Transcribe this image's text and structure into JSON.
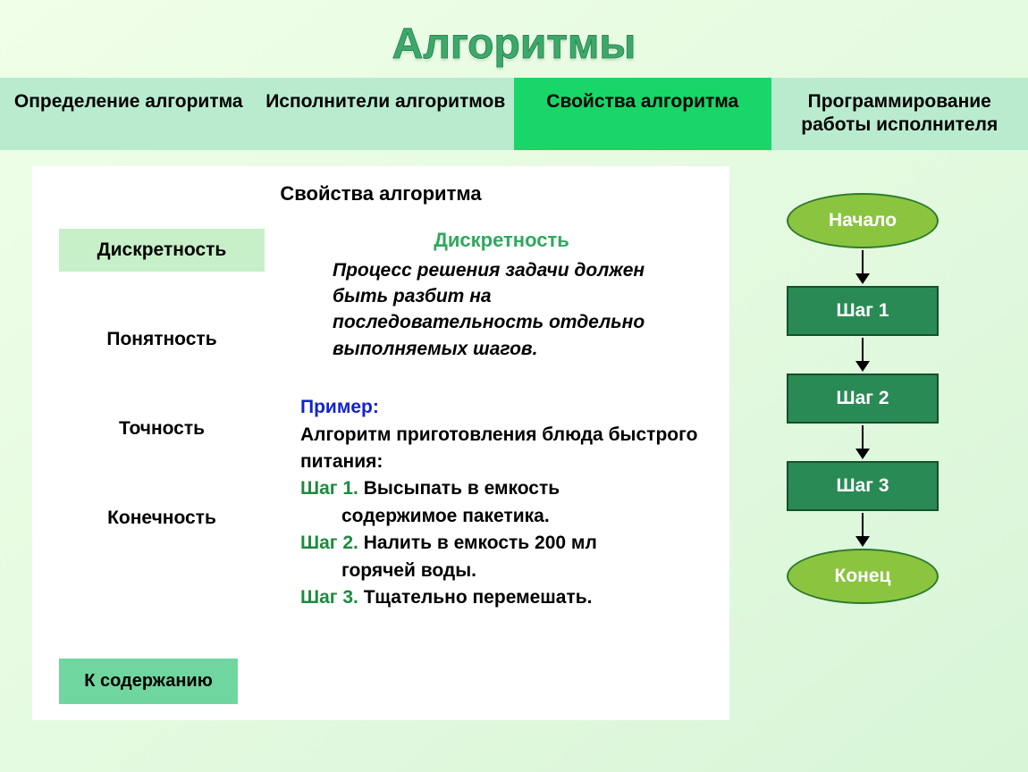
{
  "title": "Алгоритмы",
  "tabs": [
    {
      "label": "Определение алгоритма",
      "active": false
    },
    {
      "label": "Исполнители алгоритмов",
      "active": false
    },
    {
      "label": "Свойства алгоритма",
      "active": true
    },
    {
      "label": "Программирование работы исполнителя",
      "active": false
    }
  ],
  "panel_heading": "Свойства алгоритма",
  "properties": [
    {
      "label": "Дискретность",
      "selected": true
    },
    {
      "label": "Понятность",
      "selected": false
    },
    {
      "label": "Точность",
      "selected": false
    },
    {
      "label": "Конечность",
      "selected": false
    }
  ],
  "toc_button": "К содержанию",
  "definition": {
    "title": "Дискретность",
    "body": "Процесс решения задачи должен быть разбит на последовательность отдельно выполняемых шагов."
  },
  "example": {
    "label": "Пример:",
    "intro": "Алгоритм приготовления блюда быстрого питания:",
    "steps": [
      {
        "num": "Шаг 1.",
        "line1": "Высыпать в емкость",
        "line2": "содержимое пакетика."
      },
      {
        "num": "Шаг 2.",
        "line1": "Налить в емкость 200 мл",
        "line2": "горячей воды."
      },
      {
        "num": "Шаг 3.",
        "line1": "Тщательно перемешать.",
        "line2": ""
      }
    ]
  },
  "flowchart": {
    "type": "flowchart",
    "nodes": [
      {
        "label": "Начало",
        "shape": "ellipse",
        "fill": "#8bc53f",
        "border": "#2d7a2d"
      },
      {
        "label": "Шаг 1",
        "shape": "rect",
        "fill": "#2a8a55",
        "border": "#14502e"
      },
      {
        "label": "Шаг 2",
        "shape": "rect",
        "fill": "#2a8a55",
        "border": "#14502e"
      },
      {
        "label": "Шаг 3",
        "shape": "rect",
        "fill": "#2a8a55",
        "border": "#14502e"
      },
      {
        "label": "Конец",
        "shape": "ellipse",
        "fill": "#8bc53f",
        "border": "#2d7a2d"
      }
    ],
    "text_color": "#ffffff",
    "arrow_color": "#000000",
    "font_size": 21
  },
  "colors": {
    "tab_light": "#b9eccf",
    "tab_active": "#18d667",
    "prop_selected_bg": "#c8f0c8",
    "toc_bg": "#6fd6a0",
    "def_title": "#2fa85e",
    "example_label": "#1323cc",
    "step_num": "#1e8a3f",
    "panel_bg": "#ffffff",
    "page_bg_from": "#f0ffe8",
    "page_bg_to": "#d8f5d8"
  }
}
